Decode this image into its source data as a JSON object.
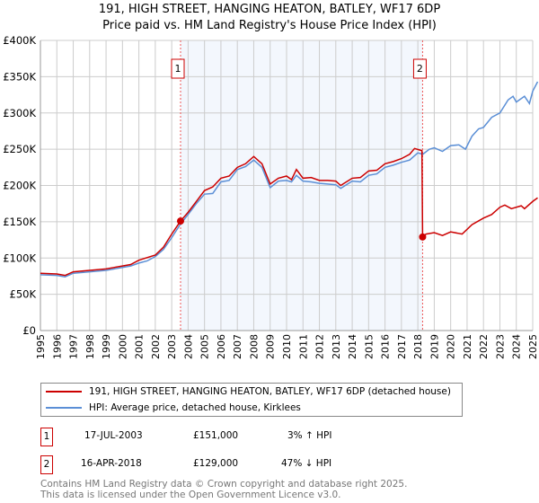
{
  "chart_data": {
    "type": "line",
    "title": "191, HIGH STREET, HANGING HEATON, BATLEY, WF17 6DP",
    "subtitle": "Price paid vs. HM Land Registry's House Price Index (HPI)",
    "xlim": [
      1995,
      2025.3
    ],
    "ylim": [
      0,
      400000
    ],
    "yticks": [
      {
        "v": 0,
        "label": "£0"
      },
      {
        "v": 50000,
        "label": "£50K"
      },
      {
        "v": 100000,
        "label": "£100K"
      },
      {
        "v": 150000,
        "label": "£150K"
      },
      {
        "v": 200000,
        "label": "£200K"
      },
      {
        "v": 250000,
        "label": "£250K"
      },
      {
        "v": 300000,
        "label": "£300K"
      },
      {
        "v": 350000,
        "label": "£350K"
      },
      {
        "v": 400000,
        "label": "£400K"
      }
    ],
    "xticks": [
      "1995",
      "1996",
      "1997",
      "1998",
      "1999",
      "2000",
      "2001",
      "2002",
      "2003",
      "2004",
      "2005",
      "2006",
      "2007",
      "2008",
      "2009",
      "2010",
      "2011",
      "2012",
      "2013",
      "2014",
      "2015",
      "2016",
      "2017",
      "2018",
      "2019",
      "2020",
      "2021",
      "2022",
      "2023",
      "2024",
      "2025"
    ],
    "grid": true,
    "shaded_range": [
      2003.54,
      2018.29
    ],
    "series": [
      {
        "name": "191, HIGH STREET, HANGING HEATON, BATLEY, WF17 6DP (detached house)",
        "color": "#cc0000",
        "x": [
          1995,
          1996,
          1996.5,
          1997,
          1998,
          1999,
          2000,
          2000.5,
          2001,
          2002,
          2002.5,
          2003,
          2003.54,
          2004,
          2004.5,
          2005,
          2005.5,
          2006,
          2006.5,
          2007,
          2007.5,
          2008,
          2008.5,
          2009,
          2009.5,
          2010,
          2010.3,
          2010.6,
          2011,
          2011.5,
          2012,
          2012.5,
          2013,
          2013.3,
          2014,
          2014.5,
          2015,
          2015.5,
          2016,
          2016.5,
          2017,
          2017.5,
          2017.8,
          2018.25,
          2018.29,
          2018.5,
          2019,
          2019.5,
          2020,
          2020.7,
          2021.3,
          2022,
          2022.5,
          2023,
          2023.3,
          2023.7,
          2024.3,
          2024.5,
          2025,
          2025.3
        ],
        "y": [
          79000,
          78000,
          76000,
          81000,
          83000,
          85000,
          89000,
          91000,
          97000,
          104000,
          115000,
          133000,
          151000,
          163000,
          178000,
          193000,
          198000,
          210000,
          213000,
          225000,
          230000,
          240000,
          230000,
          202000,
          210000,
          213000,
          208000,
          222000,
          210000,
          211000,
          207000,
          207000,
          206000,
          200000,
          210000,
          211000,
          220000,
          221000,
          230000,
          233000,
          237000,
          243000,
          251000,
          248000,
          129000,
          133000,
          135000,
          131000,
          136000,
          133000,
          146000,
          155000,
          160000,
          170000,
          173000,
          168000,
          172000,
          168000,
          178000,
          183000
        ]
      },
      {
        "name": "HPI: Average price, detached house, Kirklees",
        "color": "#5b8fd6",
        "x": [
          1995,
          1996,
          1996.5,
          1997,
          1998,
          1999,
          2000,
          2000.5,
          2001,
          2001.5,
          2002,
          2002.5,
          2003,
          2003.54,
          2004,
          2004.5,
          2005,
          2005.5,
          2006,
          2006.5,
          2007,
          2007.5,
          2008,
          2008.5,
          2009,
          2009.5,
          2010,
          2010.3,
          2010.6,
          2011,
          2011.5,
          2012,
          2012.5,
          2013,
          2013.3,
          2014,
          2014.5,
          2015,
          2015.5,
          2016,
          2016.5,
          2017,
          2017.5,
          2018,
          2018.3,
          2018.7,
          2019,
          2019.5,
          2020,
          2020.5,
          2020.9,
          2021.3,
          2021.7,
          2022,
          2022.5,
          2023,
          2023.5,
          2023.8,
          2024,
          2024.5,
          2024.8,
          2025,
          2025.3
        ],
        "y": [
          77000,
          76000,
          74000,
          79000,
          81000,
          83000,
          87000,
          89000,
          93000,
          96000,
          102000,
          112000,
          128000,
          147000,
          160000,
          175000,
          188000,
          189000,
          205000,
          207000,
          222000,
          226000,
          235000,
          225000,
          197000,
          206000,
          207000,
          205000,
          214000,
          206000,
          205000,
          203000,
          202000,
          201000,
          196000,
          206000,
          205000,
          214000,
          216000,
          225000,
          228000,
          232000,
          235000,
          245000,
          243000,
          250000,
          252000,
          247000,
          255000,
          256000,
          250000,
          268000,
          278000,
          280000,
          294000,
          300000,
          318000,
          323000,
          315000,
          323000,
          313000,
          330000,
          343000
        ]
      }
    ],
    "annotations": [
      {
        "label": "1",
        "x": 2003.54,
        "y": 151000
      },
      {
        "label": "2",
        "x": 2018.29,
        "y": 129000
      }
    ]
  },
  "legend": {
    "property": "191, HIGH STREET, HANGING HEATON, BATLEY, WF17 6DP (detached house)",
    "hpi": "HPI: Average price, detached house, Kirklees"
  },
  "transactions": [
    {
      "num": "1",
      "date": "17-JUL-2003",
      "price": "£151,000",
      "hpi": "3% ↑ HPI"
    },
    {
      "num": "2",
      "date": "16-APR-2018",
      "price": "£129,000",
      "hpi": "47% ↓ HPI"
    }
  ],
  "footer": {
    "line1": "Contains HM Land Registry data © Crown copyright and database right 2025.",
    "line2": "This data is licensed under the Open Government Licence v3.0."
  }
}
